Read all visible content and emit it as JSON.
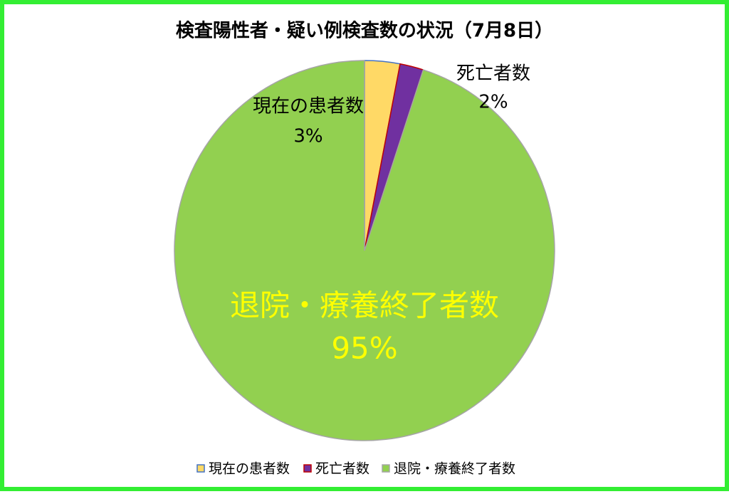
{
  "chart_data": {
    "type": "pie",
    "title": "検査陽性者・疑い例検査数の状況（7月8日）",
    "categories": [
      "現在の患者数",
      "死亡者数",
      "退院・療養終了者数"
    ],
    "values": [
      3,
      2,
      95
    ],
    "value_labels": [
      "3%",
      "2%",
      "95%"
    ],
    "colors": [
      "#ffd966",
      "#7030a0",
      "#92d050"
    ],
    "edge_colors": [
      "#4472c4",
      "#c00000",
      "#a5a5a5"
    ],
    "legend": "bottom"
  }
}
